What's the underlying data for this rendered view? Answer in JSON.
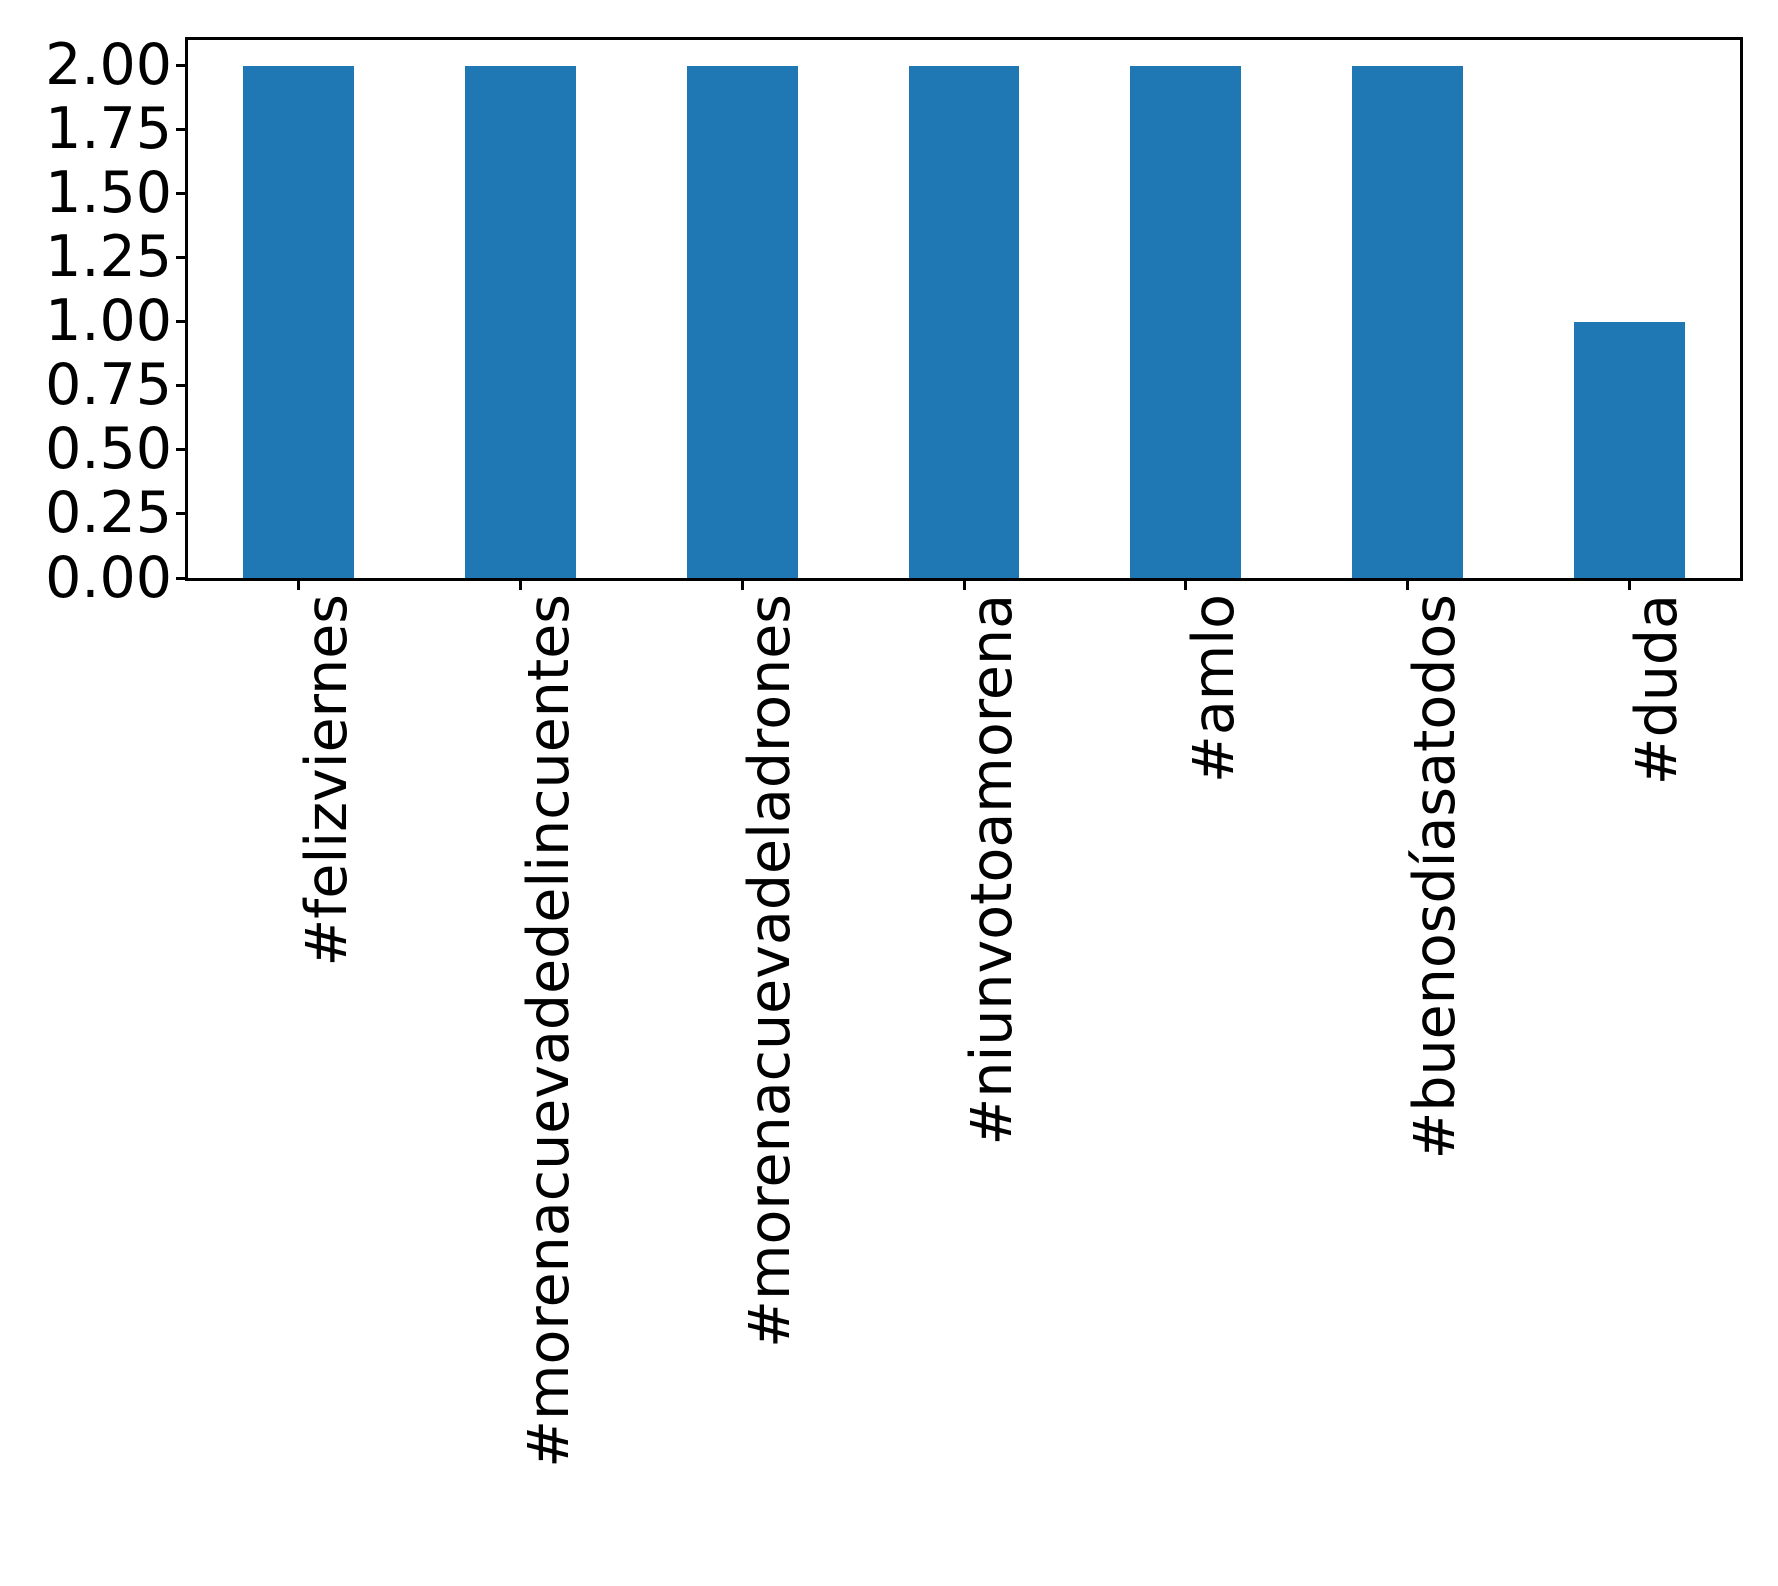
{
  "chart_data": {
    "type": "bar",
    "title": "",
    "xlabel": "",
    "ylabel": "",
    "categories": [
      "#felizviernes",
      "#morenacuevadedelincuentes",
      "#morenacuevadeladrones",
      "#niunvotoamorena",
      "#amlo",
      "#buenosdíasatodos",
      "#duda"
    ],
    "values": [
      2,
      2,
      2,
      2,
      2,
      2,
      1
    ],
    "ylim": [
      0,
      2.1
    ],
    "yticks": {
      "values": [
        0,
        0.25,
        0.5,
        0.75,
        1.0,
        1.25,
        1.5,
        1.75,
        2.0
      ],
      "labels": [
        "0.00",
        "0.25",
        "0.50",
        "0.75",
        "1.00",
        "1.25",
        "1.50",
        "1.75",
        "2.00"
      ]
    },
    "x_tick_rotation": 90,
    "bar_color": "#1f77b4",
    "spine_color": "#000000",
    "tick_label_color": "#000000",
    "bar_relative_width": 0.5,
    "grid": false,
    "legend": null
  }
}
